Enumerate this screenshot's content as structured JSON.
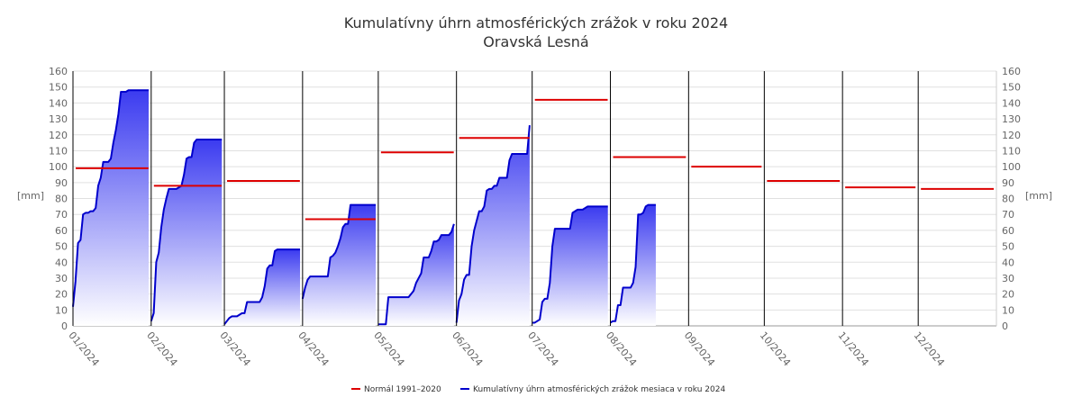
{
  "chart_data": {
    "type": "area",
    "title": "Kumulatívny úhrn atmosférických zrážok v roku 2024",
    "subtitle": "Oravská Lesná",
    "ylabel_left": "[mm]",
    "ylabel_right": "[mm]",
    "ylim": [
      0,
      160
    ],
    "yticks": [
      0,
      10,
      20,
      30,
      40,
      50,
      60,
      70,
      80,
      90,
      100,
      110,
      120,
      130,
      140,
      150,
      160
    ],
    "xlim": [
      0,
      366
    ],
    "x_unit": "day of year 2024",
    "month_labels": [
      "01/2024",
      "02/2024",
      "03/2024",
      "04/2024",
      "05/2024",
      "06/2024",
      "07/2024",
      "08/2024",
      "09/2024",
      "10/2024",
      "11/2024",
      "12/2024"
    ],
    "month_starts": [
      0,
      31,
      60,
      91,
      121,
      152,
      182,
      213,
      244,
      274,
      305,
      335
    ],
    "grid": true,
    "legend_position": "bottom",
    "legend": [
      {
        "label": "Normál 1991–2020",
        "color": "#dd0000"
      },
      {
        "label": "Kumulatívny úhrn atmosférických zrážok mesiaca v roku 2024",
        "color": "#0000cc"
      }
    ],
    "series": [
      {
        "name": "Normál 1991–2020",
        "kind": "monthly_normal",
        "color": "#dd0000",
        "values": [
          99,
          88,
          91,
          67,
          109,
          118,
          142,
          106,
          100,
          91,
          87,
          86
        ]
      },
      {
        "name": "Kumulatívny úhrn atmosférických zrážok mesiaca v roku 2024",
        "kind": "cumulative",
        "color": "#0000cc",
        "months": [
          [
            [
              0,
              12
            ],
            [
              1,
              28
            ],
            [
              2,
              52
            ],
            [
              3,
              54
            ],
            [
              4,
              70
            ],
            [
              5,
              71
            ],
            [
              6,
              71
            ],
            [
              7,
              72
            ],
            [
              8,
              72
            ],
            [
              9,
              74
            ],
            [
              10,
              88
            ],
            [
              11,
              93
            ],
            [
              12,
              103
            ],
            [
              13,
              103
            ],
            [
              14,
              103
            ],
            [
              15,
              105
            ],
            [
              16,
              115
            ],
            [
              17,
              123
            ],
            [
              18,
              133
            ],
            [
              19,
              147
            ],
            [
              20,
              147
            ],
            [
              21,
              147
            ],
            [
              22,
              148
            ],
            [
              23,
              148
            ],
            [
              24,
              148
            ],
            [
              25,
              148
            ],
            [
              26,
              148
            ],
            [
              27,
              148
            ],
            [
              28,
              148
            ],
            [
              29,
              148
            ],
            [
              30,
              148
            ]
          ],
          [
            [
              0,
              3
            ],
            [
              1,
              8
            ],
            [
              2,
              40
            ],
            [
              3,
              46
            ],
            [
              4,
              62
            ],
            [
              5,
              73
            ],
            [
              6,
              80
            ],
            [
              7,
              86
            ],
            [
              8,
              86
            ],
            [
              9,
              86
            ],
            [
              10,
              86
            ],
            [
              11,
              87
            ],
            [
              12,
              88
            ],
            [
              13,
              95
            ],
            [
              14,
              105
            ],
            [
              15,
              106
            ],
            [
              16,
              106
            ],
            [
              17,
              115
            ],
            [
              18,
              117
            ],
            [
              19,
              117
            ],
            [
              20,
              117
            ],
            [
              21,
              117
            ],
            [
              22,
              117
            ],
            [
              23,
              117
            ],
            [
              24,
              117
            ],
            [
              25,
              117
            ],
            [
              26,
              117
            ],
            [
              27,
              117
            ],
            [
              28,
              117
            ]
          ],
          [
            [
              0,
              1
            ],
            [
              1,
              3
            ],
            [
              2,
              5
            ],
            [
              3,
              6
            ],
            [
              4,
              6
            ],
            [
              5,
              6
            ],
            [
              6,
              7
            ],
            [
              7,
              8
            ],
            [
              8,
              8
            ],
            [
              9,
              15
            ],
            [
              10,
              15
            ],
            [
              11,
              15
            ],
            [
              12,
              15
            ],
            [
              13,
              15
            ],
            [
              14,
              15
            ],
            [
              15,
              18
            ],
            [
              16,
              25
            ],
            [
              17,
              36
            ],
            [
              18,
              38
            ],
            [
              19,
              38
            ],
            [
              20,
              47
            ],
            [
              21,
              48
            ],
            [
              22,
              48
            ],
            [
              23,
              48
            ],
            [
              24,
              48
            ],
            [
              25,
              48
            ],
            [
              26,
              48
            ],
            [
              27,
              48
            ],
            [
              28,
              48
            ],
            [
              29,
              48
            ],
            [
              30,
              48
            ]
          ],
          [
            [
              0,
              17
            ],
            [
              1,
              24
            ],
            [
              2,
              29
            ],
            [
              3,
              31
            ],
            [
              4,
              31
            ],
            [
              5,
              31
            ],
            [
              6,
              31
            ],
            [
              7,
              31
            ],
            [
              8,
              31
            ],
            [
              9,
              31
            ],
            [
              10,
              31
            ],
            [
              11,
              43
            ],
            [
              12,
              44
            ],
            [
              13,
              46
            ],
            [
              14,
              50
            ],
            [
              15,
              55
            ],
            [
              16,
              62
            ],
            [
              17,
              64
            ],
            [
              18,
              64
            ],
            [
              19,
              76
            ],
            [
              20,
              76
            ],
            [
              21,
              76
            ],
            [
              22,
              76
            ],
            [
              23,
              76
            ],
            [
              24,
              76
            ],
            [
              25,
              76
            ],
            [
              26,
              76
            ],
            [
              27,
              76
            ],
            [
              28,
              76
            ],
            [
              29,
              76
            ]
          ],
          [
            [
              0,
              1
            ],
            [
              1,
              1
            ],
            [
              2,
              1
            ],
            [
              3,
              1
            ],
            [
              4,
              18
            ],
            [
              5,
              18
            ],
            [
              6,
              18
            ],
            [
              7,
              18
            ],
            [
              8,
              18
            ],
            [
              9,
              18
            ],
            [
              10,
              18
            ],
            [
              11,
              18
            ],
            [
              12,
              18
            ],
            [
              13,
              20
            ],
            [
              14,
              22
            ],
            [
              15,
              27
            ],
            [
              16,
              30
            ],
            [
              17,
              33
            ],
            [
              18,
              43
            ],
            [
              19,
              43
            ],
            [
              20,
              43
            ],
            [
              21,
              47
            ],
            [
              22,
              53
            ],
            [
              23,
              53
            ],
            [
              24,
              54
            ],
            [
              25,
              57
            ],
            [
              26,
              57
            ],
            [
              27,
              57
            ],
            [
              28,
              57
            ],
            [
              29,
              59
            ],
            [
              30,
              64
            ]
          ],
          [
            [
              0,
              2
            ],
            [
              1,
              16
            ],
            [
              2,
              20
            ],
            [
              3,
              29
            ],
            [
              4,
              32
            ],
            [
              5,
              32
            ],
            [
              6,
              50
            ],
            [
              7,
              60
            ],
            [
              8,
              66
            ],
            [
              9,
              72
            ],
            [
              10,
              72
            ],
            [
              11,
              75
            ],
            [
              12,
              85
            ],
            [
              13,
              86
            ],
            [
              14,
              86
            ],
            [
              15,
              88
            ],
            [
              16,
              88
            ],
            [
              17,
              93
            ],
            [
              18,
              93
            ],
            [
              19,
              93
            ],
            [
              20,
              93
            ],
            [
              21,
              104
            ],
            [
              22,
              108
            ],
            [
              23,
              108
            ],
            [
              24,
              108
            ],
            [
              25,
              108
            ],
            [
              26,
              108
            ],
            [
              27,
              108
            ],
            [
              28,
              108
            ],
            [
              29,
              126
            ]
          ],
          [
            [
              0,
              2
            ],
            [
              1,
              2
            ],
            [
              2,
              3
            ],
            [
              3,
              4
            ],
            [
              4,
              15
            ],
            [
              5,
              17
            ],
            [
              6,
              17
            ],
            [
              7,
              27
            ],
            [
              8,
              50
            ],
            [
              9,
              61
            ],
            [
              10,
              61
            ],
            [
              11,
              61
            ],
            [
              12,
              61
            ],
            [
              13,
              61
            ],
            [
              14,
              61
            ],
            [
              15,
              61
            ],
            [
              16,
              71
            ],
            [
              17,
              72
            ],
            [
              18,
              73
            ],
            [
              19,
              73
            ],
            [
              20,
              73
            ],
            [
              21,
              74
            ],
            [
              22,
              75
            ],
            [
              23,
              75
            ],
            [
              24,
              75
            ],
            [
              25,
              75
            ],
            [
              26,
              75
            ],
            [
              27,
              75
            ],
            [
              28,
              75
            ],
            [
              29,
              75
            ],
            [
              30,
              75
            ]
          ],
          [
            [
              0,
              2
            ],
            [
              1,
              3
            ],
            [
              2,
              3
            ],
            [
              3,
              13
            ],
            [
              4,
              13
            ],
            [
              5,
              24
            ],
            [
              6,
              24
            ],
            [
              7,
              24
            ],
            [
              8,
              24
            ],
            [
              9,
              27
            ],
            [
              10,
              37
            ],
            [
              11,
              70
            ],
            [
              12,
              70
            ],
            [
              13,
              71
            ],
            [
              14,
              75
            ],
            [
              15,
              76
            ],
            [
              16,
              76
            ],
            [
              17,
              76
            ],
            [
              18,
              76
            ]
          ]
        ]
      }
    ]
  }
}
